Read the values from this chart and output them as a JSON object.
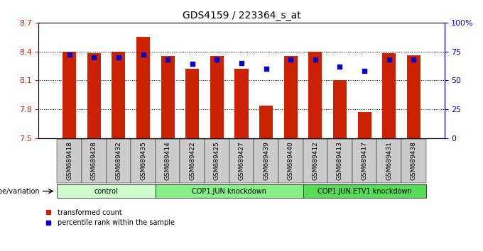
{
  "title": "GDS4159 / 223364_s_at",
  "samples": [
    "GSM689418",
    "GSM689428",
    "GSM689432",
    "GSM689435",
    "GSM689414",
    "GSM689422",
    "GSM689425",
    "GSM689427",
    "GSM689439",
    "GSM689440",
    "GSM689412",
    "GSM689413",
    "GSM689417",
    "GSM689431",
    "GSM689438"
  ],
  "bar_values": [
    8.4,
    8.38,
    8.4,
    8.55,
    8.35,
    8.22,
    8.35,
    8.22,
    7.84,
    8.35,
    8.4,
    8.1,
    7.77,
    8.38,
    8.36
  ],
  "dot_values": [
    72,
    70,
    70,
    72,
    68,
    64,
    68,
    65,
    60,
    68,
    68,
    62,
    58,
    68,
    68
  ],
  "ymin": 7.5,
  "ymax": 8.7,
  "bar_color": "#CC2200",
  "dot_color": "#0000CC",
  "groups": [
    {
      "label": "control",
      "start": 0,
      "end": 4,
      "color": "#CCFFCC"
    },
    {
      "label": "COP1.JUN knockdown",
      "start": 4,
      "end": 10,
      "color": "#88EE88"
    },
    {
      "label": "COP1.JUN.ETV1 knockdown",
      "start": 10,
      "end": 15,
      "color": "#55DD55"
    }
  ],
  "ylabel_left": "",
  "ylabel_right": "",
  "right_yticks": [
    0,
    25,
    50,
    75,
    100
  ],
  "right_yticklabels": [
    "0",
    "25",
    "50",
    "75",
    "100%"
  ],
  "left_yticks": [
    7.5,
    7.8,
    8.1,
    8.4,
    8.7
  ],
  "genotype_label": "genotype/variation",
  "legend_bar_label": "transformed count",
  "legend_dot_label": "percentile rank within the sample",
  "background_color": "#FFFFFF",
  "plot_bg_color": "#FFFFFF"
}
